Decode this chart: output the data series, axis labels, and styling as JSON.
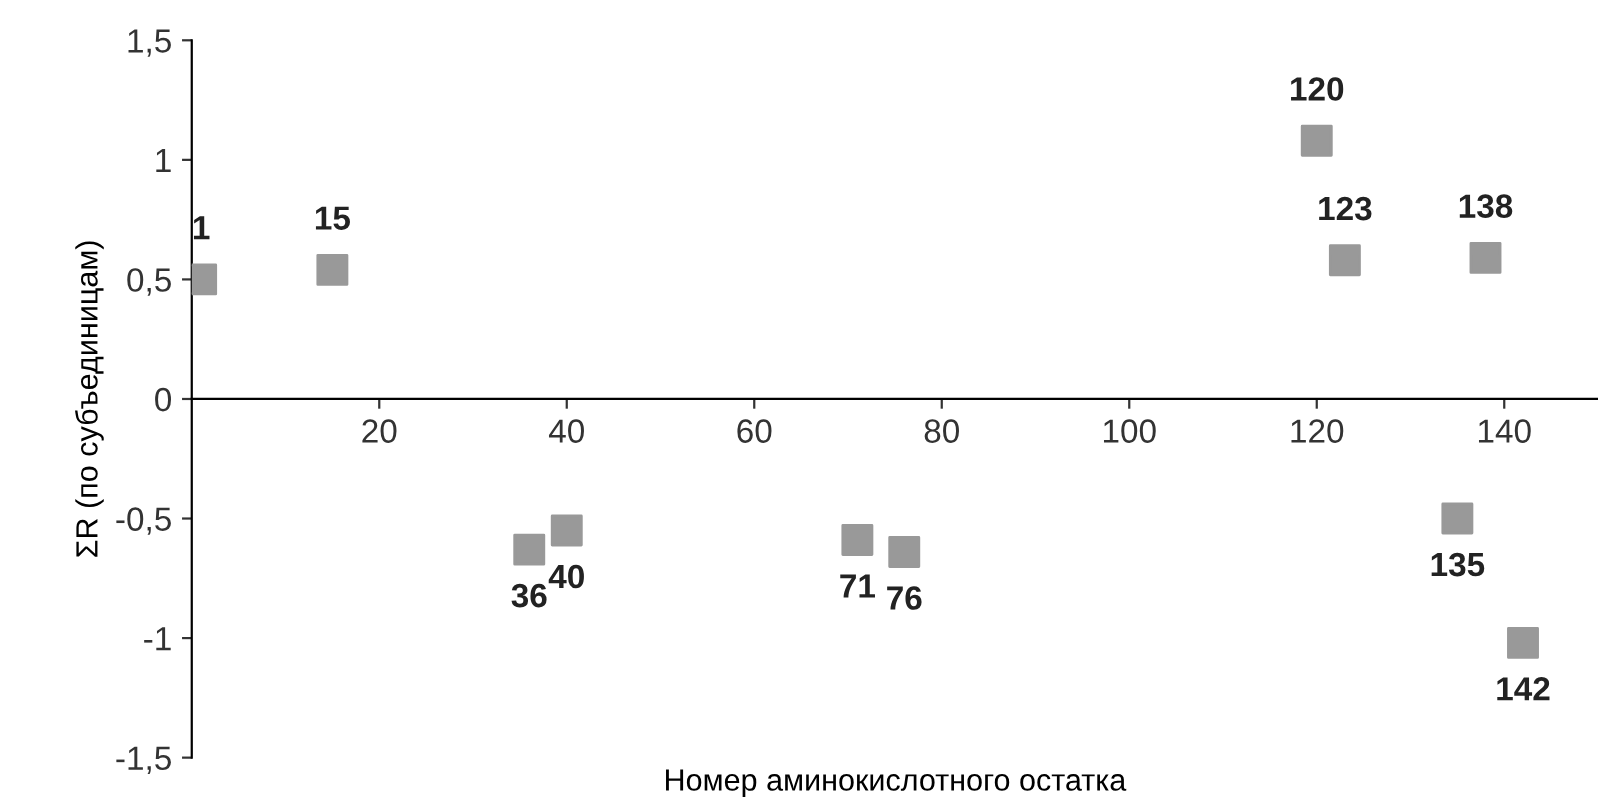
{
  "chart_data": {
    "type": "scatter",
    "xlabel": "Номер аминокислотного остатка",
    "ylabel": "ΣR (по субъединицам)",
    "x": [
      1,
      15,
      36,
      40,
      71,
      76,
      120,
      123,
      135,
      138,
      142
    ],
    "series": [
      {
        "color": "#999999",
        "values": [
          0.5,
          0.54,
          -0.63,
          -0.55,
          -0.59,
          -0.64,
          1.08,
          0.58,
          -0.5,
          0.59,
          -1.02
        ]
      }
    ],
    "annotations": [
      {
        "text": "1",
        "x": 1,
        "y": 0.5
      },
      {
        "text": "15",
        "x": 15,
        "y": 0.54
      },
      {
        "text": "36",
        "x": 36,
        "y": -0.63
      },
      {
        "text": "40",
        "x": 40,
        "y": -0.55
      },
      {
        "text": "71",
        "x": 71,
        "y": -0.59
      },
      {
        "text": "76",
        "x": 76,
        "y": -0.64
      },
      {
        "text": "120",
        "x": 120,
        "y": 1.08
      },
      {
        "text": "123",
        "x": 123,
        "y": 0.58
      },
      {
        "text": "135",
        "x": 135,
        "y": -0.5
      },
      {
        "text": "138",
        "x": 138,
        "y": 0.59
      },
      {
        "text": "142",
        "x": 142,
        "y": -1.02
      }
    ],
    "xlim": [
      0,
      150
    ],
    "xticks": [
      20,
      40,
      60,
      80,
      100,
      120,
      140
    ],
    "ylim": [
      -1.5,
      1.5
    ],
    "yticks": [
      {
        "value": -1.5,
        "label": "-1,5"
      },
      {
        "value": -1,
        "label": "-1"
      },
      {
        "value": -0.5,
        "label": "-0,5"
      },
      {
        "value": 0,
        "label": "0"
      },
      {
        "value": 0.5,
        "label": "0,5"
      },
      {
        "value": 1,
        "label": "1"
      },
      {
        "value": 1.5,
        "label": "1,5"
      }
    ],
    "marker": "square",
    "grid": false,
    "legend": false
  }
}
